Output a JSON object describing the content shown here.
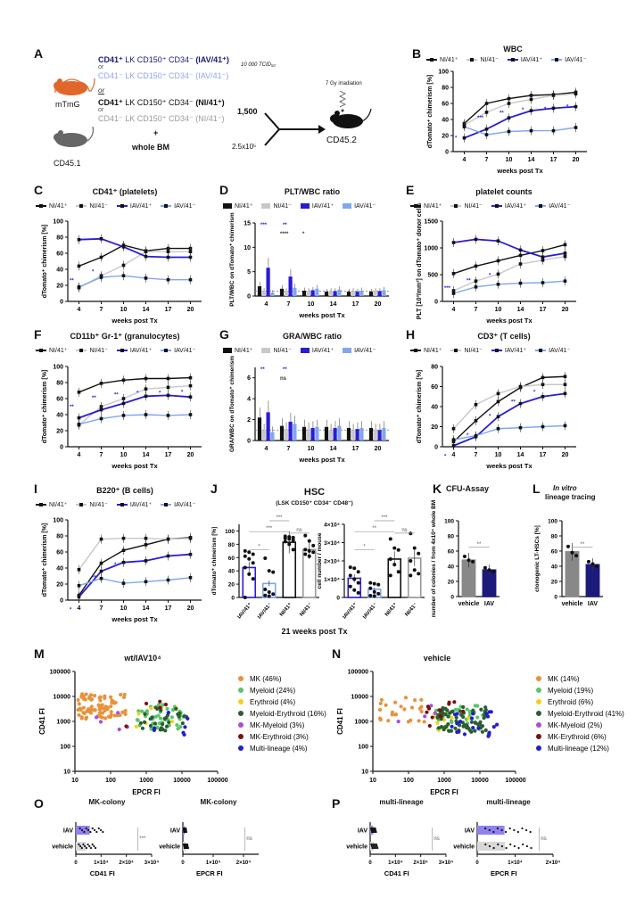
{
  "panel_labels": {
    "A": "A",
    "B": "B",
    "C": "C",
    "D": "D",
    "E": "E",
    "F": "F",
    "G": "G",
    "H": "H",
    "I": "I",
    "J": "J",
    "K": "K",
    "L": "L",
    "M": "M",
    "N": "N",
    "O": "O",
    "P": "P"
  },
  "schematic": {
    "line1_bold": "CD41⁺",
    "line1_rest": " LK CD150⁺ CD34⁻ ",
    "line1_group": "(IAV/41⁺)",
    "or1": "or",
    "line2": "CD41⁻ LK CD150⁺ CD34⁻ (IAV/41⁻)",
    "or_mid": "or",
    "line3_bold": "CD41⁺",
    "line3_rest": " LK CD150⁺ CD34⁻ ",
    "line3_group": "(NI/41⁺)",
    "or2": "or",
    "line4": "CD41⁻ LK CD150⁺ CD34⁻ (NI/41⁻)",
    "plus": "+",
    "whole_bm": "whole BM",
    "dose": "10 000 TCID₅₀",
    "donor_mouse": "mTmG",
    "competitor_mouse": "CD45.1",
    "recipient_mouse": "CD45.2",
    "cells_1": "1,500",
    "cells_2": "2.5x10⁵",
    "irradiation": "7 Gy irradiation"
  },
  "colors": {
    "ni_pos": "#111111",
    "ni_neg": "#c8c8c8",
    "iav_pos": "#2a1bd6",
    "iav_neg": "#7fa6f0",
    "mouse_orange": "#e0672a",
    "mouse_gray": "#666666",
    "MK": "#e8923a",
    "Myeloid": "#5cc46a",
    "Erythroid": "#f2d21b",
    "Myeloid-Erythroid": "#2b5e33",
    "MK-Myeloid": "#a54fe0",
    "MK-Erythroid": "#7a1010",
    "Multi-lineage": "#1f1fcc"
  },
  "series_names": [
    "NI/41⁺",
    "NI/41⁻",
    "IAV/41⁺",
    "IAV/41⁻"
  ],
  "chart_data": [
    {
      "id": "B",
      "type": "line",
      "title": "WBC",
      "xlabel": "weeks post Tx",
      "ylabel": "dTomato⁺ chimerism [%]",
      "categories": [
        4,
        7,
        10,
        14,
        17,
        20
      ],
      "ylim": [
        0,
        100
      ],
      "yticks": [
        0,
        20,
        40,
        60,
        80,
        100
      ],
      "series": [
        {
          "name": "NI/41⁺",
          "values": [
            35,
            60,
            66,
            70,
            71,
            74
          ]
        },
        {
          "name": "NI/41⁻",
          "values": [
            33,
            49,
            60,
            65,
            70,
            72
          ]
        },
        {
          "name": "IAV/41⁺",
          "values": [
            17,
            28,
            42,
            51,
            54,
            56
          ]
        },
        {
          "name": "IAV/41⁻",
          "values": [
            31,
            21,
            25,
            26,
            26,
            30
          ]
        }
      ],
      "annotations": [
        "*",
        "***",
        "**",
        "*",
        "*",
        "*"
      ]
    },
    {
      "id": "C",
      "type": "line",
      "title": "CD41⁺ (platelets)",
      "xlabel": "weeks post Tx",
      "ylabel": "dTomato⁺ chimerism [%]",
      "categories": [
        4,
        7,
        10,
        14,
        17,
        20
      ],
      "ylim": [
        0,
        100
      ],
      "yticks": [
        0,
        20,
        40,
        60,
        80,
        100
      ],
      "series": [
        {
          "name": "NI/41⁺",
          "values": [
            44,
            55,
            70,
            63,
            66,
            66
          ]
        },
        {
          "name": "NI/41⁻",
          "values": [
            17,
            32,
            45,
            62,
            62,
            62
          ]
        },
        {
          "name": "IAV/41⁺",
          "values": [
            77,
            78,
            68,
            56,
            55,
            55
          ]
        },
        {
          "name": "IAV/41⁻",
          "values": [
            18,
            30,
            32,
            29,
            27,
            27
          ]
        }
      ],
      "annotations": [
        "**",
        "*"
      ]
    },
    {
      "id": "D",
      "type": "bar",
      "title": "PLT/WBC ratio",
      "xlabel": "weeks post Tx",
      "ylabel": "PLT/WBC on dTomato⁺ chimerism",
      "categories": [
        4,
        7,
        10,
        14,
        17,
        20
      ],
      "ylim": [
        0,
        15
      ],
      "yticks": [
        0,
        5,
        10,
        15
      ],
      "series": [
        {
          "name": "NI/41⁺",
          "values": [
            2.0,
            1.5,
            1.1,
            0.9,
            0.9,
            0.9
          ]
        },
        {
          "name": "NI/41⁻",
          "values": [
            1.0,
            1.0,
            1.0,
            1.0,
            1.0,
            1.0
          ]
        },
        {
          "name": "IAV/41⁺",
          "values": [
            5.8,
            4.0,
            1.2,
            1.0,
            0.9,
            1.0
          ]
        },
        {
          "name": "IAV/41⁻",
          "values": [
            0.7,
            1.7,
            1.5,
            1.3,
            1.1,
            1.2
          ]
        }
      ],
      "annotations": [
        "***",
        "****",
        "**",
        "*"
      ]
    },
    {
      "id": "E",
      "type": "line",
      "title": "platelet counts",
      "xlabel": "weeks post Tx",
      "ylabel": "PLT [10³/mm³] on dTomato⁺ donor cells",
      "categories": [
        4,
        7,
        10,
        14,
        17,
        20
      ],
      "ylim": [
        0,
        1500
      ],
      "yticks": [
        0,
        500,
        1000,
        1500
      ],
      "series": [
        {
          "name": "NI/41⁺",
          "values": [
            520,
            660,
            760,
            860,
            950,
            1060
          ]
        },
        {
          "name": "NI/41⁻",
          "values": [
            200,
            380,
            510,
            700,
            770,
            840
          ]
        },
        {
          "name": "IAV/41⁺",
          "values": [
            1100,
            1160,
            1130,
            960,
            830,
            900
          ]
        },
        {
          "name": "IAV/41⁻",
          "values": [
            150,
            270,
            320,
            340,
            350,
            380
          ]
        }
      ],
      "annotations": [
        "***",
        "**",
        "*"
      ]
    },
    {
      "id": "F",
      "type": "line",
      "title": "CD11b⁺ Gr-1⁺ (granulocytes)",
      "xlabel": "weeks post Tx",
      "ylabel": "dTomato⁺ chimerism [%]",
      "categories": [
        4,
        7,
        10,
        14,
        17,
        20
      ],
      "ylim": [
        0,
        100
      ],
      "yticks": [
        0,
        20,
        40,
        60,
        80,
        100
      ],
      "series": [
        {
          "name": "NI/41⁺",
          "values": [
            68,
            79,
            83,
            85,
            85,
            86
          ]
        },
        {
          "name": "NI/41⁻",
          "values": [
            27,
            50,
            60,
            72,
            74,
            76
          ]
        },
        {
          "name": "IAV/41⁺",
          "values": [
            36,
            46,
            54,
            63,
            64,
            62
          ]
        },
        {
          "name": "IAV/41⁻",
          "values": [
            28,
            35,
            39,
            40,
            39,
            40
          ]
        }
      ],
      "annotations": [
        "**",
        "**",
        "**",
        "*",
        "*",
        "*"
      ]
    },
    {
      "id": "G",
      "type": "bar",
      "title": "GRA/WBC ratio",
      "xlabel": "weeks post Tx",
      "ylabel": "GRA/WBC on dTomato⁺ chimerism",
      "categories": [
        4,
        7,
        10,
        14,
        17,
        20
      ],
      "ylim": [
        0,
        7
      ],
      "yticks": [
        0,
        2,
        4,
        6
      ],
      "series": [
        {
          "name": "NI/41⁺",
          "values": [
            2.2,
            1.4,
            1.3,
            1.3,
            1.2,
            1.2
          ]
        },
        {
          "name": "NI/41⁻",
          "values": [
            1.0,
            1.1,
            1.1,
            1.0,
            1.0,
            1.0
          ]
        },
        {
          "name": "IAV/41⁺",
          "values": [
            2.7,
            1.8,
            1.2,
            1.2,
            1.1,
            1.0
          ]
        },
        {
          "name": "IAV/41⁻",
          "values": [
            0.8,
            1.6,
            1.3,
            1.4,
            1.2,
            1.2
          ]
        }
      ],
      "annotations": [
        "**",
        "ns",
        "**"
      ]
    },
    {
      "id": "H",
      "type": "line",
      "title": "CD3⁺ (T cells)",
      "xlabel": "weeks post Tx",
      "ylabel": "dTomato⁺ chimerism [%]",
      "categories": [
        4,
        7,
        10,
        14,
        17,
        20
      ],
      "ylim": [
        0,
        80
      ],
      "yticks": [
        0,
        20,
        40,
        60,
        80
      ],
      "series": [
        {
          "name": "NI/41⁺",
          "values": [
            5,
            26,
            45,
            59,
            69,
            70
          ]
        },
        {
          "name": "NI/41⁻",
          "values": [
            18,
            42,
            53,
            60,
            62,
            62
          ]
        },
        {
          "name": "IAV/41⁺",
          "values": [
            1,
            10,
            30,
            43,
            50,
            53
          ]
        },
        {
          "name": "IAV/41⁻",
          "values": [
            7,
            11,
            18,
            19,
            20,
            21
          ]
        }
      ],
      "annotations": [
        "*",
        "*",
        "*",
        "**",
        "*"
      ]
    },
    {
      "id": "I",
      "type": "line",
      "title": "B220⁺ (B cells)",
      "xlabel": "weeks post Tx",
      "ylabel": "dTomato⁺ chimerism [%]",
      "categories": [
        4,
        7,
        10,
        14,
        17,
        20
      ],
      "ylim": [
        0,
        100
      ],
      "yticks": [
        0,
        20,
        40,
        60,
        80,
        100
      ],
      "series": [
        {
          "name": "NI/41⁺",
          "values": [
            6,
            46,
            62,
            69,
            76,
            78
          ]
        },
        {
          "name": "NI/41⁻",
          "values": [
            38,
            76,
            77,
            77,
            76,
            77
          ]
        },
        {
          "name": "IAV/41⁺",
          "values": [
            4,
            36,
            47,
            49,
            55,
            57
          ]
        },
        {
          "name": "IAV/41⁻",
          "values": [
            18,
            27,
            21,
            23,
            25,
            28
          ]
        }
      ],
      "annotations": [
        "*",
        "**",
        "*"
      ]
    },
    {
      "id": "J1",
      "type": "bar",
      "title": "HSC",
      "subtitle": "(LSK CD150⁺ CD34⁻ CD48⁻)",
      "xlabel": "21 weeks post Tx",
      "ylabel": "dTomato⁺ chimerism [%]",
      "categories": [
        "IAV/41⁺",
        "IAV/41⁻",
        "NI/41⁺",
        "NI/41⁻"
      ],
      "ylim": [
        0,
        110
      ],
      "yticks": [
        0,
        20,
        40,
        60,
        80,
        100
      ],
      "values": [
        45,
        21,
        83,
        72
      ],
      "points": [
        [
          70,
          68,
          65,
          62,
          58,
          52,
          45,
          35,
          28,
          0
        ],
        [
          59,
          40,
          38,
          12,
          8,
          5,
          3,
          2
        ],
        [
          92,
          91,
          90,
          89,
          88,
          86,
          84,
          80,
          72
        ],
        [
          93,
          85,
          78,
          72,
          70,
          68,
          65,
          62
        ]
      ],
      "annotations": [
        "*",
        "***",
        "***",
        "ns"
      ]
    },
    {
      "id": "J2",
      "type": "bar",
      "title": "",
      "xlabel": "21 weeks post Tx",
      "ylabel": "cell number / mouse",
      "categories": [
        "IAV/41⁺",
        "IAV/41⁻",
        "NI/41⁺",
        "NI/41⁻"
      ],
      "ylim": [
        0,
        40000
      ],
      "yticks": [
        "0",
        "1×10⁴",
        "2×10⁴",
        "3×10⁴",
        "4×10⁴"
      ],
      "values": [
        10500,
        4500,
        21000,
        21500
      ],
      "points": [
        [
          16500,
          16000,
          14000,
          12000,
          10000,
          8000,
          6000,
          4000,
          2500
        ],
        [
          8000,
          7500,
          7000,
          5000,
          3000,
          2000,
          1000,
          800
        ],
        [
          32000,
          27000,
          26000,
          21000,
          18000,
          14000,
          12000
        ],
        [
          35000,
          27000,
          24000,
          20000,
          15000,
          13000,
          12000
        ]
      ],
      "annotations": [
        "*",
        "**",
        "***",
        "ns"
      ]
    },
    {
      "id": "K",
      "type": "bar",
      "title": "CFU-Assay",
      "xlabel": "",
      "ylabel": "number of colonies / from 4x10⁴ whole BM",
      "categories": [
        "vehicle",
        "IAV"
      ],
      "ylim": [
        0,
        100
      ],
      "yticks": [
        0,
        20,
        40,
        60,
        80,
        100
      ],
      "values": [
        48,
        35
      ],
      "points": [
        [
          53,
          48,
          46
        ],
        [
          38,
          35,
          33
        ]
      ],
      "annotations": [
        "**"
      ]
    },
    {
      "id": "L",
      "type": "bar",
      "title": "In vitro lineage tracing",
      "xlabel": "",
      "ylabel": "clonogenic LT-HSCs [%]",
      "categories": [
        "vehicle",
        "IAV"
      ],
      "ylim": [
        0,
        100
      ],
      "yticks": [
        0,
        20,
        40,
        60,
        80,
        100
      ],
      "values": [
        59,
        42
      ],
      "points": [
        [
          66,
          58,
          54
        ],
        [
          46,
          43,
          40
        ]
      ],
      "annotations": [
        "**"
      ]
    },
    {
      "id": "M",
      "type": "scatter",
      "title": "wt/IAV10⁴",
      "xlabel": "EPCR FI",
      "ylabel": "CD41 FI",
      "xscale": "log",
      "yscale": "log",
      "xlim": [
        10,
        100000
      ],
      "ylim": [
        10,
        100000
      ],
      "xticks": [
        "10",
        "100",
        "1000",
        "10000",
        "100000"
      ],
      "yticks": [
        "10",
        "100",
        "1000",
        "10000",
        "100000"
      ],
      "legend": [
        {
          "name": "MK",
          "pct": "46%"
        },
        {
          "name": "Myeloid",
          "pct": "24%"
        },
        {
          "name": "Erythroid",
          "pct": "4%"
        },
        {
          "name": "Myeloid-Erythroid",
          "pct": "16%"
        },
        {
          "name": "MK-Myeloid",
          "pct": "3%"
        },
        {
          "name": "MK-Erythroid",
          "pct": "3%"
        },
        {
          "name": "Multi-lineage",
          "pct": "4%"
        }
      ]
    },
    {
      "id": "N",
      "type": "scatter",
      "title": "vehicle",
      "xlabel": "EPCR FI",
      "ylabel": "CD41 FI",
      "xscale": "log",
      "yscale": "log",
      "xlim": [
        10,
        100000
      ],
      "ylim": [
        10,
        100000
      ],
      "xticks": [
        "10",
        "100",
        "1000",
        "10000",
        "100000"
      ],
      "yticks": [
        "10",
        "100",
        "1000",
        "10000",
        "100000"
      ],
      "legend": [
        {
          "name": "MK",
          "pct": "14%"
        },
        {
          "name": "Myeloid",
          "pct": "19%"
        },
        {
          "name": "Erythroid",
          "pct": "6%"
        },
        {
          "name": "Myeloid-Erythroid",
          "pct": "41%"
        },
        {
          "name": "MK-Myeloid",
          "pct": "2%"
        },
        {
          "name": "MK-Erythroid",
          "pct": "6%"
        },
        {
          "name": "Multi-lineage",
          "pct": "12%"
        }
      ]
    },
    {
      "id": "O1",
      "type": "bar",
      "orientation": "horizontal",
      "title": "MK-colony",
      "xlabel": "CD41  FI",
      "categories": [
        "IAV",
        "vehicle"
      ],
      "xlim": [
        0,
        30000
      ],
      "xticks": [
        "0",
        "1×10⁴",
        "2×10⁴",
        "3×10⁴"
      ],
      "values": [
        5500,
        4000
      ],
      "annotations": [
        "***"
      ]
    },
    {
      "id": "O2",
      "type": "bar",
      "orientation": "horizontal",
      "title": "MK-colony",
      "xlabel": "EPCR FI",
      "categories": [
        "IAV",
        "vehicle"
      ],
      "xlim": [
        0,
        25000
      ],
      "xticks": [
        "0",
        "1×10⁴",
        "2×10⁴"
      ],
      "values": [
        600,
        900
      ],
      "annotations": [
        "ns"
      ]
    },
    {
      "id": "P1",
      "type": "bar",
      "orientation": "horizontal",
      "title": "multi-lineage",
      "xlabel": "CD41  FI",
      "categories": [
        "IAV",
        "vehicle"
      ],
      "xlim": [
        0,
        30000
      ],
      "xticks": [
        "0",
        "1×10⁴",
        "2×10⁴",
        "3×10⁴"
      ],
      "values": [
        1200,
        1500
      ],
      "annotations": [
        "ns"
      ]
    },
    {
      "id": "P2",
      "type": "bar",
      "orientation": "horizontal",
      "title": "multi-lineage",
      "xlabel": "EPCR FI",
      "categories": [
        "IAV",
        "vehicle"
      ],
      "xlim": [
        0,
        20000
      ],
      "xticks": [
        "0",
        "1×10⁴",
        "2×10⁴"
      ],
      "values": [
        7200,
        7300
      ],
      "annotations": [
        "ns"
      ]
    }
  ]
}
